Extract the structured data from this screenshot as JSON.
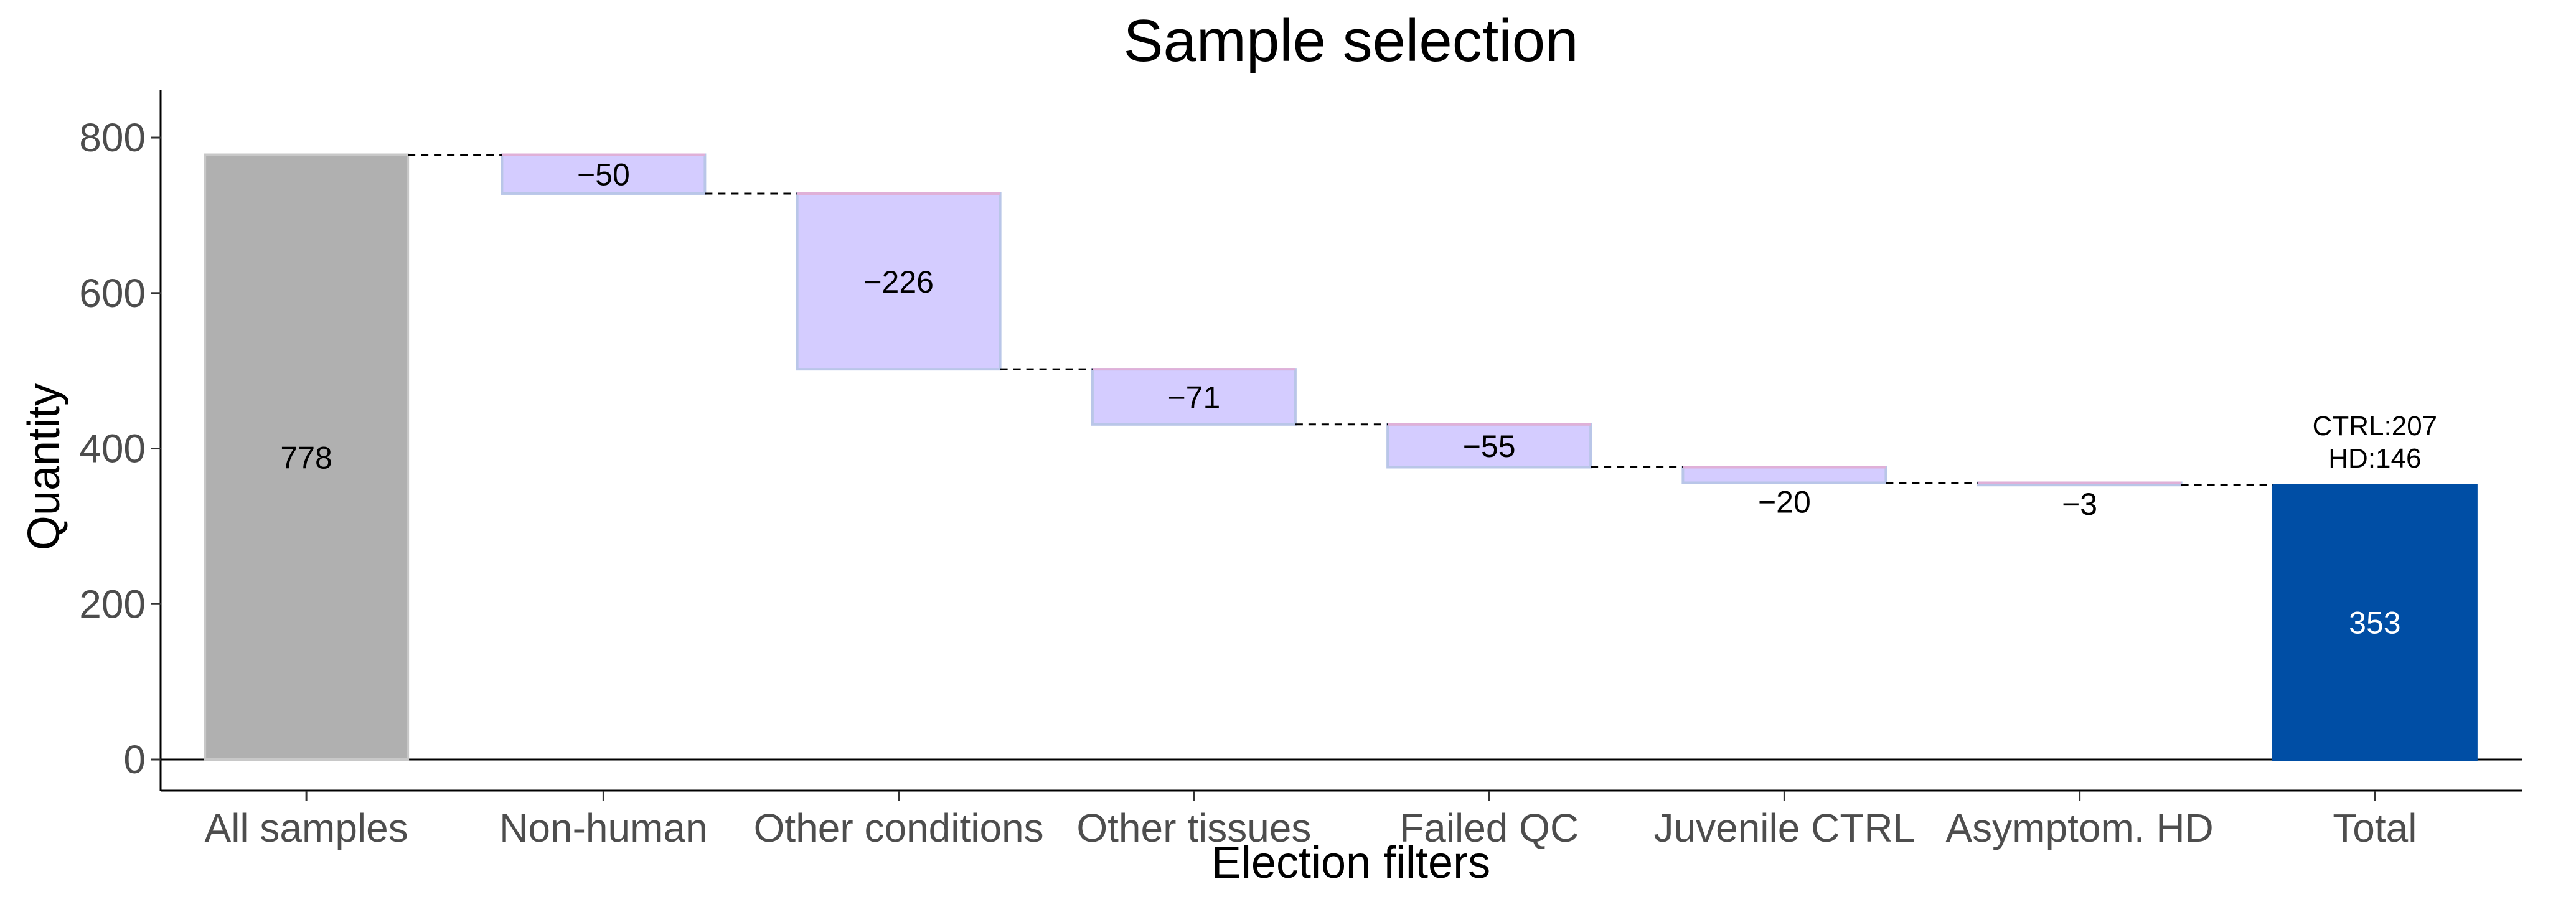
{
  "chart_data": {
    "type": "waterfall",
    "title": "Sample selection",
    "xlabel": "Election filters",
    "ylabel": "Quantity",
    "ylim": [
      0,
      830
    ],
    "yticks": [
      0,
      200,
      400,
      600,
      800
    ],
    "grid": false,
    "categories": [
      "All samples",
      "Non-human",
      "Other conditions",
      "Other tissues",
      "Failed QC",
      "Juvenile CTRL",
      "Asymptom. HD",
      "Total"
    ],
    "values": [
      778,
      -50,
      -226,
      -71,
      -55,
      -20,
      -3,
      353
    ],
    "labels": [
      "778",
      "−50",
      "−226",
      "−71",
      "−55",
      "−20",
      "−3",
      "353"
    ],
    "total_annotation": [
      "CTRL:207",
      "HD:146"
    ],
    "colors": {
      "start": "#b0b0b0",
      "decrease_fill": "#d4ccff",
      "decrease_edge": "#b9c6e8",
      "total": "#004ea5",
      "connector": "#000000"
    }
  }
}
